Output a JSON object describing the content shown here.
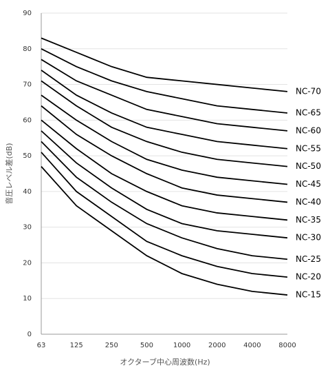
{
  "chart_data": {
    "type": "line",
    "x_label": "オクターブ中心周波数(Hz)",
    "y_label": "音圧レベル差(dB)",
    "categories": [
      "63",
      "125",
      "250",
      "500",
      "1000",
      "2000",
      "4000",
      "8000"
    ],
    "ylim": [
      0,
      90
    ],
    "yticks": [
      0,
      10,
      20,
      30,
      40,
      50,
      60,
      70,
      80,
      90
    ],
    "grid": true,
    "series": [
      {
        "name": "NC-70",
        "color": "#000000",
        "values": [
          83,
          79,
          75,
          72,
          71,
          70,
          69,
          68
        ]
      },
      {
        "name": "NC-65",
        "color": "#000000",
        "values": [
          80,
          75,
          71,
          68,
          66,
          64,
          63,
          62
        ]
      },
      {
        "name": "NC-60",
        "color": "#000000",
        "values": [
          77,
          71,
          67,
          63,
          61,
          59,
          58,
          57
        ]
      },
      {
        "name": "NC-55",
        "color": "#000000",
        "values": [
          74,
          67,
          62,
          58,
          56,
          54,
          53,
          52
        ]
      },
      {
        "name": "NC-50",
        "color": "#000000",
        "values": [
          71,
          64,
          58,
          54,
          51,
          49,
          48,
          47
        ]
      },
      {
        "name": "NC-45",
        "color": "#000000",
        "values": [
          67,
          60,
          54,
          49,
          46,
          44,
          43,
          42
        ]
      },
      {
        "name": "NC-40",
        "color": "#000000",
        "values": [
          64,
          56,
          50,
          45,
          41,
          39,
          38,
          37
        ]
      },
      {
        "name": "NC-35",
        "color": "#000000",
        "values": [
          60,
          52,
          45,
          40,
          36,
          34,
          33,
          32
        ]
      },
      {
        "name": "NC-30",
        "color": "#000000",
        "values": [
          57,
          48,
          41,
          35,
          31,
          29,
          28,
          27
        ]
      },
      {
        "name": "NC-25",
        "color": "#000000",
        "values": [
          54,
          44,
          37,
          31,
          27,
          24,
          22,
          21
        ]
      },
      {
        "name": "NC-20",
        "color": "#000000",
        "values": [
          51,
          40,
          33,
          26,
          22,
          19,
          17,
          16
        ]
      },
      {
        "name": "NC-15",
        "color": "#000000",
        "values": [
          47,
          36,
          29,
          22,
          17,
          14,
          12,
          11
        ]
      }
    ]
  }
}
